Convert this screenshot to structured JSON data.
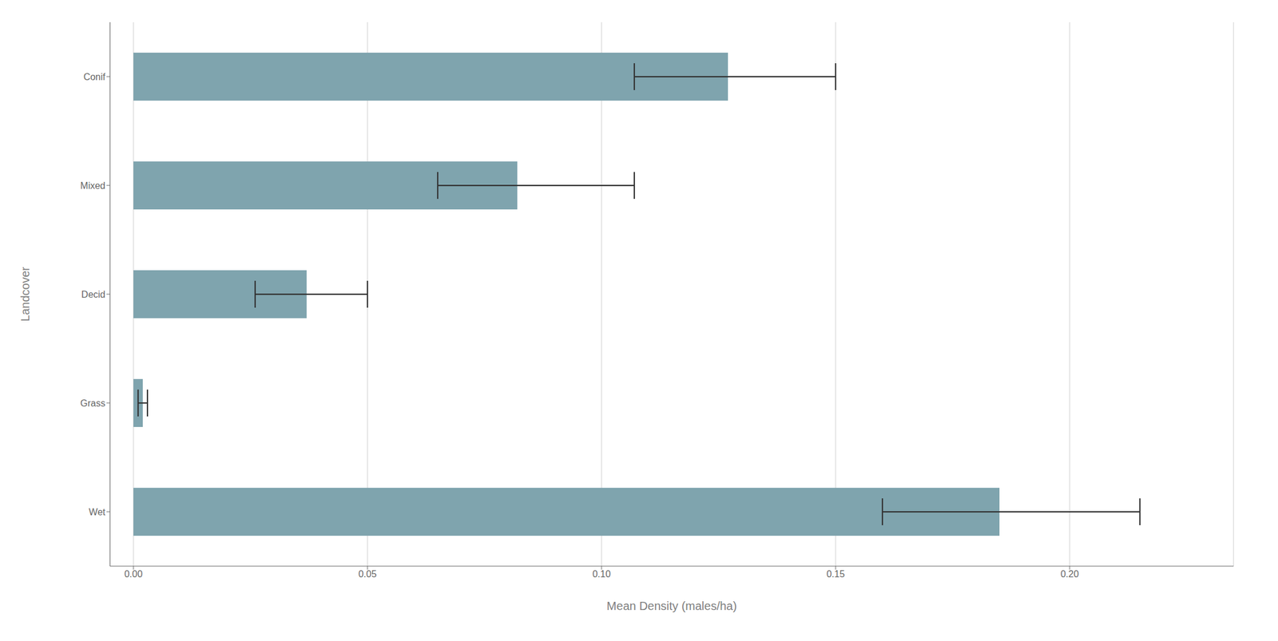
{
  "chart_data": {
    "type": "bar",
    "orientation": "horizontal",
    "categories": [
      "Conif",
      "Mixed",
      "Decid",
      "Grass",
      "Wet"
    ],
    "values": [
      0.127,
      0.082,
      0.037,
      0.002,
      0.185
    ],
    "error_lower": [
      0.107,
      0.065,
      0.026,
      0.001,
      0.16
    ],
    "error_upper": [
      0.15,
      0.107,
      0.05,
      0.003,
      0.215
    ],
    "color": "#7fa4ae",
    "xlabel": "Mean Density (males/ha)",
    "ylabel": "Landcover",
    "xlim": [
      -0.005,
      0.235
    ],
    "xticks": [
      {
        "value": 0,
        "label": "0.00"
      },
      {
        "value": 0.05,
        "label": "0.05"
      },
      {
        "value": 0.1,
        "label": "0.10"
      },
      {
        "value": 0.15,
        "label": "0.15"
      },
      {
        "value": 0.2,
        "label": "0.20"
      }
    ],
    "grid": true
  }
}
